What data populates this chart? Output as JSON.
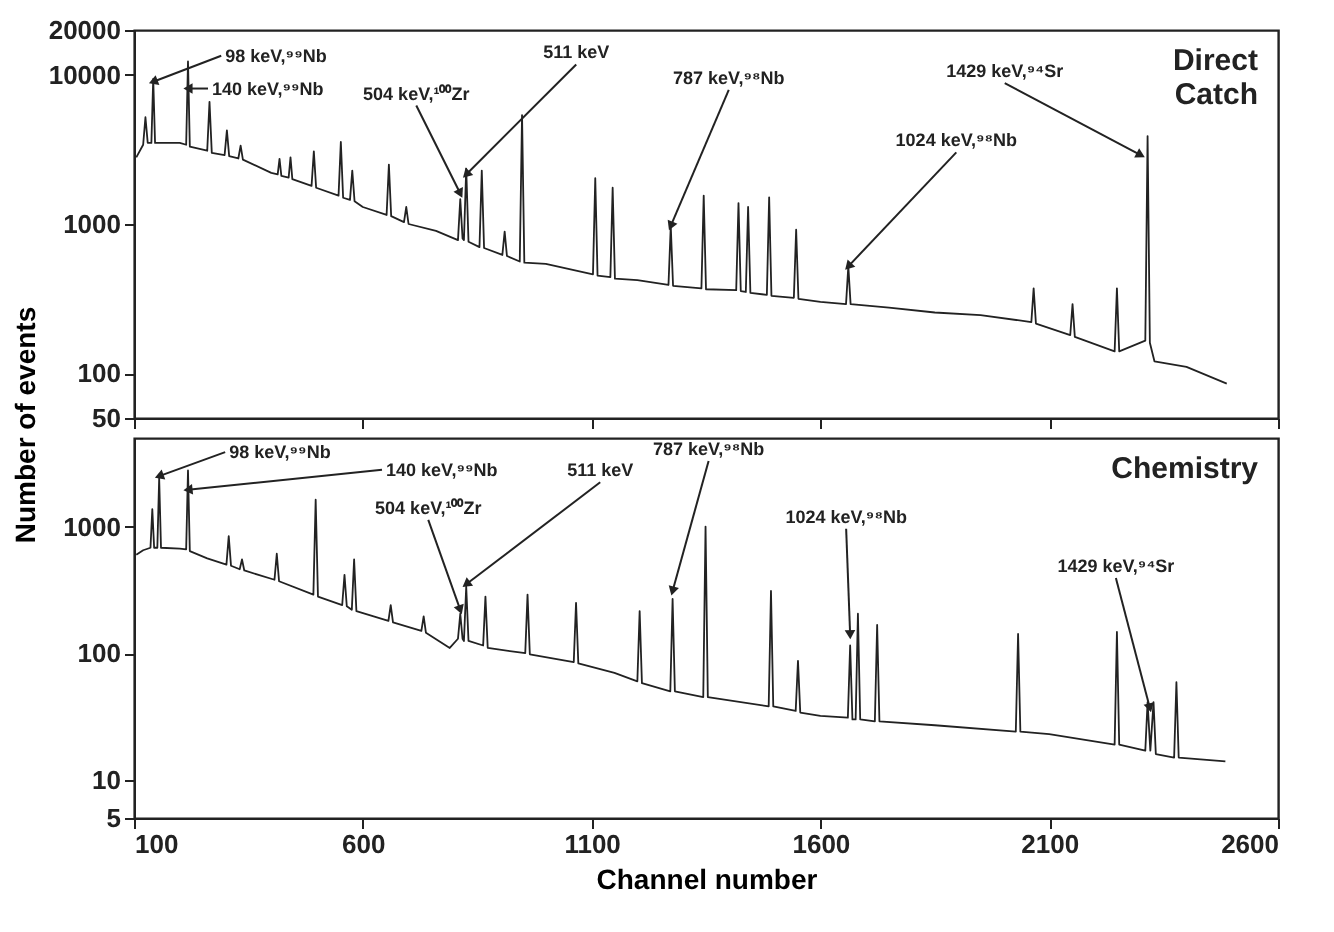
{
  "chart_data": [
    {
      "type": "line",
      "ylabel": "Number of events",
      "log": true,
      "tick_labels": "y",
      "xlim": [
        100,
        2600
      ],
      "xticks": [
        100,
        600,
        1100,
        1600,
        2100,
        2600
      ],
      "ylim": [
        50,
        20000
      ],
      "yticks": [
        50,
        100,
        1000,
        10000,
        20000
      ],
      "series": [
        {
          "color": "#222222",
          "x": [
            105,
            120,
            125,
            130,
            138,
            142,
            146,
            200,
            214,
            218,
            222,
            260,
            265,
            270,
            298,
            303,
            308,
            328,
            333,
            338,
            400,
            414,
            418,
            422,
            438,
            442,
            446,
            488,
            493,
            498,
            547,
            552,
            557,
            572,
            577,
            582,
            600,
            652,
            657,
            662,
            690,
            695,
            700,
            760,
            808,
            813,
            818,
            821,
            826,
            831,
            855,
            860,
            865,
            905,
            910,
            915,
            943,
            948,
            953,
            1000,
            1103,
            1108,
            1113,
            1141,
            1146,
            1151,
            1200,
            1268,
            1273,
            1278,
            1340,
            1345,
            1350,
            1416,
            1421,
            1426,
            1437,
            1442,
            1447,
            1483,
            1488,
            1493,
            1542,
            1547,
            1552,
            1600,
            1656,
            1661,
            1666,
            1750,
            1850,
            1950,
            2061,
            2066,
            2071,
            2146,
            2151,
            2156,
            2243,
            2248,
            2253,
            2310,
            2315,
            2320,
            2330,
            2400,
            2488
          ],
          "values": [
            2800,
            3400,
            5200,
            3500,
            3500,
            9400,
            3500,
            3500,
            3400,
            12300,
            3300,
            3100,
            6600,
            3000,
            2900,
            4250,
            2850,
            2750,
            3350,
            2700,
            2200,
            2150,
            2730,
            2100,
            2050,
            2800,
            2000,
            1800,
            3070,
            1750,
            1550,
            3550,
            1500,
            1450,
            2280,
            1420,
            1300,
            1150,
            2500,
            1130,
            1030,
            1300,
            1000,
            900,
            780,
            1470,
            800,
            780,
            2350,
            760,
            700,
            2280,
            690,
            620,
            890,
            610,
            560,
            5380,
            550,
            540,
            460,
            2030,
            450,
            440,
            1750,
            430,
            420,
            390,
            970,
            385,
            370,
            1550,
            365,
            360,
            1380,
            355,
            350,
            1300,
            345,
            335,
            1510,
            330,
            320,
            915,
            315,
            300,
            290,
            520,
            290,
            275,
            255,
            245,
            220,
            370,
            215,
            180,
            290,
            175,
            140,
            370,
            140,
            165,
            3890,
            160,
            120,
            110,
            85
          ]
        }
      ],
      "annotations": [
        {
          "text": "98 keV,⁹⁹Nb",
          "x": 142,
          "y": 9000
        },
        {
          "text": "140 keV,⁹⁹Nb",
          "x": 218,
          "y": 8100
        },
        {
          "text": "504 keV,¹⁰⁰Zr",
          "x": 813,
          "y": 1600
        },
        {
          "text": "511 keV",
          "x": 826,
          "y": 2150
        },
        {
          "text": "787 keV,⁹⁸Nb",
          "x": 1273,
          "y": 970
        },
        {
          "text": "1024 keV,⁹⁸Nb",
          "x": 1661,
          "y": 520
        },
        {
          "text": "1429 keV,⁹⁴Sr",
          "x": 2300,
          "y": 2900
        },
        "Direct Catch"
      ]
    },
    {
      "type": "line",
      "xlabel": "Channel number",
      "log": true,
      "xlim": [
        100,
        2600
      ],
      "xticks": [
        100,
        600,
        1100,
        1600,
        2100,
        2600
      ],
      "ylim": [
        5,
        5000
      ],
      "yticks": [
        5,
        10,
        100,
        1000
      ],
      "series": [
        {
          "color": "#222222",
          "x": [
            105,
            120,
            136,
            140,
            144,
            151,
            155,
            159,
            200,
            214,
            218,
            222,
            260,
            302,
            307,
            312,
            331,
            336,
            341,
            407,
            412,
            417,
            492,
            497,
            502,
            555,
            560,
            565,
            576,
            581,
            586,
            656,
            661,
            666,
            728,
            733,
            738,
            790,
            808,
            813,
            818,
            821,
            826,
            831,
            863,
            868,
            873,
            955,
            960,
            965,
            1061,
            1066,
            1071,
            1150,
            1200,
            1205,
            1210,
            1272,
            1277,
            1282,
            1344,
            1349,
            1354,
            1487,
            1492,
            1497,
            1546,
            1551,
            1556,
            1600,
            1660,
            1665,
            1670,
            1677,
            1682,
            1687,
            1719,
            1724,
            1729,
            1850,
            2027,
            2032,
            2037,
            2100,
            2243,
            2248,
            2253,
            2310,
            2315,
            2321,
            2328,
            2333,
            2373,
            2378,
            2383,
            2485
          ],
          "values": [
            600,
            650,
            680,
            1370,
            680,
            680,
            2400,
            680,
            670,
            660,
            2770,
            640,
            560,
            500,
            840,
            490,
            460,
            550,
            450,
            380,
            610,
            370,
            290,
            1630,
            280,
            240,
            415,
            235,
            220,
            550,
            215,
            180,
            240,
            175,
            150,
            195,
            145,
            110,
            130,
            205,
            130,
            125,
            335,
            125,
            115,
            280,
            110,
            100,
            290,
            98,
            85,
            250,
            83,
            70,
            60,
            215,
            58,
            50,
            268,
            50,
            45,
            1000,
            45,
            38,
            310,
            38,
            35,
            87,
            34,
            32,
            31,
            115,
            30,
            30,
            205,
            30,
            29,
            167,
            29,
            27,
            24,
            142,
            24,
            23,
            19,
            147,
            19,
            17,
            41,
            17,
            41,
            16,
            15,
            59,
            15,
            14
          ]
        }
      ],
      "annotations": [
        {
          "text": "98 keV,⁹⁹Nb",
          "x": 155,
          "y": 2500
        },
        {
          "text": "140 keV,⁹⁹Nb",
          "x": 218,
          "y": 1950
        },
        {
          "text": "504 keV,¹⁰⁰Zr",
          "x": 813,
          "y": 220
        },
        {
          "text": "511 keV",
          "x": 826,
          "y": 350
        },
        {
          "text": "787 keV,⁹⁸Nb",
          "x": 1277,
          "y": 310
        },
        {
          "text": "1024 keV,⁹⁸Nb",
          "x": 1665,
          "y": 140
        },
        {
          "text": "1429 keV,⁹⁴Sr",
          "x": 2320,
          "y": 37
        },
        "Chemistry"
      ]
    }
  ]
}
